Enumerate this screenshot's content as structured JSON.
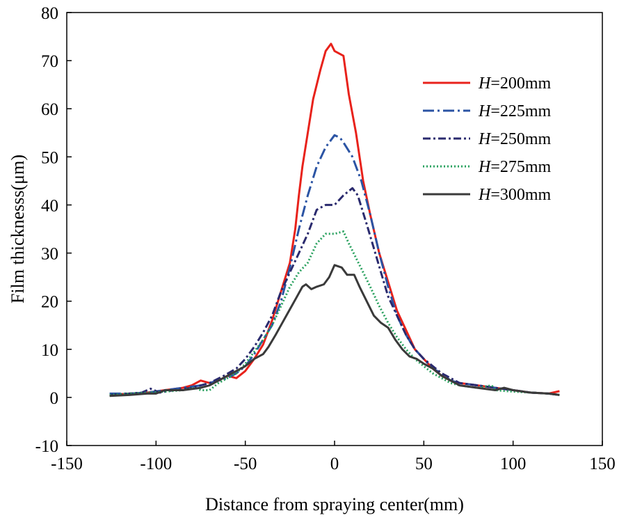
{
  "chart_data": {
    "type": "line",
    "xlabel": "Distance from spraying center(mm)",
    "ylabel": "Film thicknesss(μm)",
    "xlim": [
      -150,
      150
    ],
    "ylim": [
      -10,
      80
    ],
    "xticks": [
      -150,
      -100,
      -50,
      0,
      50,
      100,
      150
    ],
    "yticks": [
      -10,
      0,
      10,
      20,
      30,
      40,
      50,
      60,
      70,
      80
    ],
    "grid": false,
    "legend_position": "top-right",
    "series": [
      {
        "name": "H=200mm",
        "name_italic": "H",
        "name_rest": "=200mm",
        "color": "#e8221b",
        "dash": "solid",
        "points": [
          [
            -126,
            0.5
          ],
          [
            -115,
            0.8
          ],
          [
            -105,
            1.0
          ],
          [
            -95,
            1.5
          ],
          [
            -85,
            2.0
          ],
          [
            -80,
            2.5
          ],
          [
            -75,
            3.5
          ],
          [
            -70,
            3.0
          ],
          [
            -65,
            3.5
          ],
          [
            -60,
            4.5
          ],
          [
            -55,
            4.0
          ],
          [
            -50,
            5.5
          ],
          [
            -45,
            8.0
          ],
          [
            -40,
            11.0
          ],
          [
            -35,
            16.0
          ],
          [
            -30,
            22.0
          ],
          [
            -25,
            28.0
          ],
          [
            -22,
            35.0
          ],
          [
            -20,
            42.0
          ],
          [
            -18,
            48.0
          ],
          [
            -15,
            55.0
          ],
          [
            -12,
            62.0
          ],
          [
            -8,
            68.0
          ],
          [
            -5,
            72.0
          ],
          [
            -2,
            73.5
          ],
          [
            0,
            72.0
          ],
          [
            5,
            71.0
          ],
          [
            8,
            63.0
          ],
          [
            12,
            55.0
          ],
          [
            16,
            45.0
          ],
          [
            20,
            38.0
          ],
          [
            25,
            30.0
          ],
          [
            30,
            24.0
          ],
          [
            35,
            18.0
          ],
          [
            40,
            14.0
          ],
          [
            45,
            10.0
          ],
          [
            50,
            8.0
          ],
          [
            55,
            6.0
          ],
          [
            60,
            4.5
          ],
          [
            65,
            3.5
          ],
          [
            70,
            3.0
          ],
          [
            80,
            2.5
          ],
          [
            90,
            2.0
          ],
          [
            100,
            1.5
          ],
          [
            110,
            1.0
          ],
          [
            120,
            0.8
          ],
          [
            126,
            1.3
          ]
        ]
      },
      {
        "name": "H=225mm",
        "name_italic": "H",
        "name_rest": "=225mm",
        "color": "#2b54a4",
        "dash": "dashdot",
        "points": [
          [
            -126,
            0.8
          ],
          [
            -115,
            0.8
          ],
          [
            -105,
            1.0
          ],
          [
            -95,
            1.5
          ],
          [
            -85,
            2.0
          ],
          [
            -75,
            2.5
          ],
          [
            -65,
            3.5
          ],
          [
            -60,
            4.0
          ],
          [
            -55,
            5.0
          ],
          [
            -50,
            6.5
          ],
          [
            -45,
            9.0
          ],
          [
            -40,
            12.0
          ],
          [
            -35,
            15.0
          ],
          [
            -30,
            20.0
          ],
          [
            -25,
            27.0
          ],
          [
            -20,
            35.0
          ],
          [
            -15,
            42.0
          ],
          [
            -10,
            48.0
          ],
          [
            -5,
            52.0
          ],
          [
            0,
            54.5
          ],
          [
            3,
            54.0
          ],
          [
            5,
            53.0
          ],
          [
            10,
            50.0
          ],
          [
            15,
            45.0
          ],
          [
            20,
            38.0
          ],
          [
            25,
            30.0
          ],
          [
            30,
            23.0
          ],
          [
            35,
            17.0
          ],
          [
            40,
            13.0
          ],
          [
            45,
            10.0
          ],
          [
            50,
            8.0
          ],
          [
            55,
            6.0
          ],
          [
            60,
            5.0
          ],
          [
            65,
            3.5
          ],
          [
            70,
            3.0
          ],
          [
            80,
            2.5
          ],
          [
            90,
            2.0
          ],
          [
            100,
            1.5
          ],
          [
            110,
            1.0
          ],
          [
            120,
            0.8
          ],
          [
            126,
            0.5
          ]
        ]
      },
      {
        "name": "H=250mm",
        "name_italic": "H",
        "name_rest": "=250mm",
        "color": "#2a2a6e",
        "dash": "dashdotdense",
        "points": [
          [
            -126,
            0.5
          ],
          [
            -115,
            0.8
          ],
          [
            -108,
            1.0
          ],
          [
            -103,
            1.8
          ],
          [
            -98,
            1.0
          ],
          [
            -90,
            1.5
          ],
          [
            -80,
            2.0
          ],
          [
            -70,
            3.0
          ],
          [
            -62,
            4.5
          ],
          [
            -55,
            6.0
          ],
          [
            -50,
            8.0
          ],
          [
            -45,
            10.5
          ],
          [
            -40,
            13.5
          ],
          [
            -35,
            17.0
          ],
          [
            -30,
            22.0
          ],
          [
            -25,
            26.0
          ],
          [
            -20,
            30.0
          ],
          [
            -15,
            34.0
          ],
          [
            -10,
            39.0
          ],
          [
            -5,
            40.0
          ],
          [
            0,
            40.0
          ],
          [
            5,
            42.0
          ],
          [
            10,
            43.5
          ],
          [
            13,
            42.0
          ],
          [
            18,
            36.0
          ],
          [
            22,
            31.0
          ],
          [
            26,
            26.0
          ],
          [
            30,
            21.0
          ],
          [
            35,
            17.0
          ],
          [
            40,
            13.0
          ],
          [
            45,
            10.0
          ],
          [
            50,
            8.0
          ],
          [
            55,
            6.5
          ],
          [
            60,
            5.0
          ],
          [
            65,
            4.0
          ],
          [
            70,
            3.0
          ],
          [
            80,
            2.5
          ],
          [
            90,
            2.0
          ],
          [
            100,
            1.5
          ],
          [
            110,
            1.0
          ],
          [
            120,
            0.8
          ],
          [
            126,
            0.5
          ]
        ]
      },
      {
        "name": "H=275mm",
        "name_italic": "H",
        "name_rest": "=275mm",
        "color": "#27a05d",
        "dash": "dotted",
        "points": [
          [
            -126,
            0.5
          ],
          [
            -115,
            0.8
          ],
          [
            -105,
            1.0
          ],
          [
            -95,
            1.2
          ],
          [
            -85,
            1.5
          ],
          [
            -78,
            2.0
          ],
          [
            -75,
            1.5
          ],
          [
            -70,
            1.5
          ],
          [
            -65,
            3.0
          ],
          [
            -60,
            4.0
          ],
          [
            -55,
            5.0
          ],
          [
            -50,
            7.0
          ],
          [
            -45,
            9.5
          ],
          [
            -40,
            12.0
          ],
          [
            -35,
            15.0
          ],
          [
            -30,
            19.0
          ],
          [
            -25,
            23.0
          ],
          [
            -20,
            26.0
          ],
          [
            -15,
            28.0
          ],
          [
            -10,
            32.0
          ],
          [
            -5,
            34.0
          ],
          [
            0,
            34.0
          ],
          [
            5,
            34.5
          ],
          [
            8,
            32.0
          ],
          [
            12,
            29.0
          ],
          [
            16,
            26.0
          ],
          [
            20,
            23.0
          ],
          [
            25,
            19.0
          ],
          [
            30,
            15.5
          ],
          [
            35,
            12.5
          ],
          [
            40,
            10.0
          ],
          [
            45,
            8.0
          ],
          [
            50,
            6.5
          ],
          [
            55,
            5.0
          ],
          [
            60,
            4.0
          ],
          [
            65,
            3.0
          ],
          [
            70,
            2.5
          ],
          [
            80,
            2.0
          ],
          [
            88,
            2.5
          ],
          [
            90,
            1.5
          ],
          [
            100,
            1.2
          ],
          [
            110,
            1.0
          ],
          [
            120,
            0.8
          ],
          [
            126,
            0.5
          ]
        ]
      },
      {
        "name": "H=300mm",
        "name_italic": "H",
        "name_rest": "=300mm",
        "color": "#3a3a3a",
        "dash": "solid",
        "points": [
          [
            -126,
            0.3
          ],
          [
            -115,
            0.5
          ],
          [
            -105,
            0.8
          ],
          [
            -100,
            0.8
          ],
          [
            -95,
            1.5
          ],
          [
            -85,
            1.5
          ],
          [
            -75,
            2.0
          ],
          [
            -70,
            2.5
          ],
          [
            -65,
            3.5
          ],
          [
            -60,
            4.5
          ],
          [
            -55,
            5.5
          ],
          [
            -50,
            6.5
          ],
          [
            -45,
            8.0
          ],
          [
            -40,
            9.0
          ],
          [
            -37,
            10.5
          ],
          [
            -33,
            13.0
          ],
          [
            -30,
            15.0
          ],
          [
            -27,
            17.0
          ],
          [
            -24,
            19.0
          ],
          [
            -21,
            21.0
          ],
          [
            -18,
            23.0
          ],
          [
            -16,
            23.5
          ],
          [
            -13,
            22.5
          ],
          [
            -10,
            23.0
          ],
          [
            -6,
            23.5
          ],
          [
            -3,
            25.0
          ],
          [
            0,
            27.5
          ],
          [
            4,
            27.0
          ],
          [
            7,
            25.5
          ],
          [
            11,
            25.5
          ],
          [
            14,
            23.0
          ],
          [
            18,
            20.0
          ],
          [
            22,
            17.0
          ],
          [
            26,
            15.5
          ],
          [
            30,
            14.5
          ],
          [
            34,
            12.0
          ],
          [
            38,
            10.0
          ],
          [
            42,
            8.5
          ],
          [
            46,
            8.0
          ],
          [
            50,
            7.0
          ],
          [
            55,
            6.0
          ],
          [
            60,
            4.5
          ],
          [
            65,
            3.5
          ],
          [
            70,
            2.5
          ],
          [
            80,
            2.0
          ],
          [
            90,
            1.5
          ],
          [
            95,
            2.0
          ],
          [
            100,
            1.5
          ],
          [
            110,
            1.0
          ],
          [
            120,
            0.8
          ],
          [
            126,
            0.5
          ]
        ]
      }
    ]
  }
}
